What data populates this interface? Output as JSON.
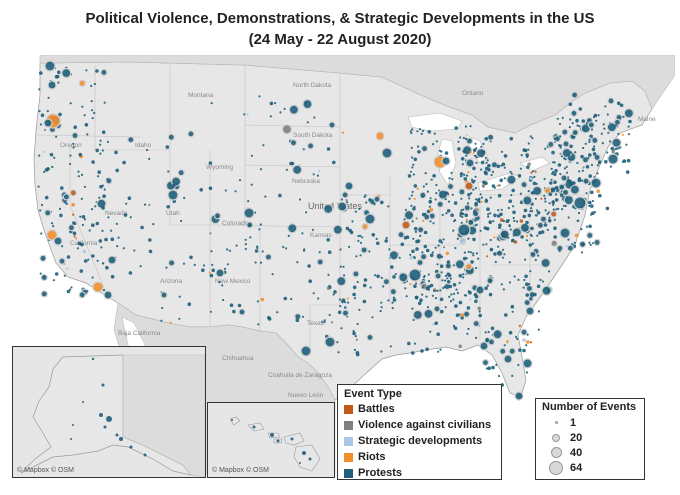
{
  "title": {
    "line1": "Political Violence, Demonstrations, & Strategic Developments in the US",
    "line2": "(24 May - 22 August 2020)"
  },
  "colors": {
    "background": "#ffffff",
    "land": "#e7e7e7",
    "neighbor_land": "#dcdcdc",
    "water": "#ffffff",
    "border": "#b9b9b9",
    "battles": "#c15a19",
    "violence_against_civilians": "#7f7f7f",
    "strategic_developments": "#a8c8e6",
    "riots": "#f28e2b",
    "protests": "#1f5f7a"
  },
  "map_labels": {
    "montana": "Montana",
    "north_dakota": "North Dakota",
    "south_dakota": "South Dakota",
    "nebraska": "Nebraska",
    "united_states": "United States",
    "nevada": "Nevada",
    "utah": "Utah",
    "idaho": "Idaho",
    "oregon": "Oregon",
    "wyoming": "Wyoming",
    "colorado": "Colorado",
    "kansas": "Kansas",
    "california": "California",
    "arizona": "Arizona",
    "new_mexico": "New Mexico",
    "texas": "Texas",
    "baja_california": "Baja California",
    "chihuahua": "Chihuahua",
    "coahuila": "Coahuila de Zaragoza",
    "nuevo_leon": "Nuevo León",
    "maine": "Maine",
    "ontario": "Ontario"
  },
  "credits": {
    "alaska": "© Mapbox © OSM",
    "hawaii": "© Mapbox © OSM"
  },
  "legend_type": {
    "title": "Event Type",
    "items": [
      {
        "label": "Battles",
        "color": "#c15a19"
      },
      {
        "label": "Violence against civilians",
        "color": "#7f7f7f"
      },
      {
        "label": "Strategic developments",
        "color": "#a8c8e6"
      },
      {
        "label": "Riots",
        "color": "#f28e2b"
      },
      {
        "label": "Protests",
        "color": "#1f5f7a"
      }
    ]
  },
  "legend_size": {
    "title": "Number of Events",
    "items": [
      {
        "label": "1",
        "value": 1
      },
      {
        "label": "20",
        "value": 20
      },
      {
        "label": "40",
        "value": 40
      },
      {
        "label": "64",
        "value": 64
      }
    ]
  }
}
